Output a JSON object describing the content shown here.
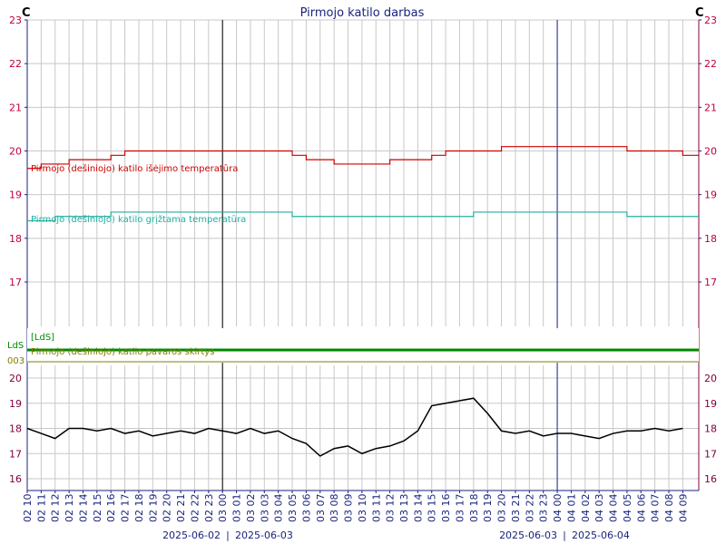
{
  "title": "Pirmojo katilo darbas",
  "unit_left": "C",
  "unit_right": "C",
  "colors": {
    "outlet": "#cc0000",
    "return": "#20b0a0",
    "state": "#008800",
    "state_aux": "#808000",
    "room": "#000000",
    "grid": "#c8c8c8",
    "axis": "#1a237e",
    "tick_top": "#c0003c",
    "tick_bottom": "#800040"
  },
  "x_tick_labels": [
    "02 10",
    "02 11",
    "02 12",
    "02 13",
    "02 14",
    "02 15",
    "02 16",
    "02 17",
    "02 18",
    "02 19",
    "02 20",
    "02 21",
    "02 22",
    "02 23",
    "03 00",
    "03 01",
    "03 02",
    "03 03",
    "03 04",
    "03 05",
    "03 06",
    "03 07",
    "03 08",
    "03 09",
    "03 10",
    "03 11",
    "03 12",
    "03 13",
    "03 14",
    "03 15",
    "03 16",
    "03 17",
    "03 18",
    "03 19",
    "03 20",
    "03 21",
    "03 22",
    "03 23",
    "04 00",
    "04 01",
    "04 02",
    "04 03",
    "04 04",
    "04 05",
    "04 06",
    "04 07",
    "04 08",
    "04 09"
  ],
  "date_labels": [
    {
      "left": "2025-06-02",
      "right": "2025-06-03"
    },
    {
      "left": "2025-06-03",
      "right": "2025-06-04"
    }
  ],
  "state_panel": {
    "tag_box": "[LdS]",
    "left_label_top": "LdS",
    "left_label_bottom": "003"
  },
  "chart_data": [
    {
      "type": "line",
      "title": "Pirmojo katilo darbas",
      "x_unit": "hour",
      "ylim": [
        16,
        23
      ],
      "yticks": [
        17,
        18,
        19,
        20,
        21,
        22,
        23
      ],
      "grid": true,
      "series": [
        {
          "name": "Pirmojo (dešiniojo) katilo išėjimo temperatūra",
          "color": "#cc0000",
          "points": [
            [
              "2025-06-02 10:00",
              19.6
            ],
            [
              "2025-06-02 11:00",
              19.7
            ],
            [
              "2025-06-02 12:00",
              19.7
            ],
            [
              "2025-06-02 13:00",
              19.8
            ],
            [
              "2025-06-02 14:00",
              19.8
            ],
            [
              "2025-06-02 15:00",
              19.8
            ],
            [
              "2025-06-02 16:00",
              19.9
            ],
            [
              "2025-06-02 17:00",
              20.0
            ],
            [
              "2025-06-02 18:00",
              20.0
            ],
            [
              "2025-06-02 19:00",
              20.0
            ],
            [
              "2025-06-02 20:00",
              20.0
            ],
            [
              "2025-06-02 21:00",
              20.0
            ],
            [
              "2025-06-02 22:00",
              20.0
            ],
            [
              "2025-06-02 23:00",
              20.0
            ],
            [
              "2025-06-03 00:00",
              20.0
            ],
            [
              "2025-06-03 01:00",
              20.0
            ],
            [
              "2025-06-03 02:00",
              20.0
            ],
            [
              "2025-06-03 03:00",
              20.0
            ],
            [
              "2025-06-03 04:00",
              20.0
            ],
            [
              "2025-06-03 05:00",
              19.9
            ],
            [
              "2025-06-03 06:00",
              19.8
            ],
            [
              "2025-06-03 07:00",
              19.8
            ],
            [
              "2025-06-03 08:00",
              19.7
            ],
            [
              "2025-06-03 09:00",
              19.7
            ],
            [
              "2025-06-03 10:00",
              19.7
            ],
            [
              "2025-06-03 11:00",
              19.7
            ],
            [
              "2025-06-03 12:00",
              19.8
            ],
            [
              "2025-06-03 13:00",
              19.8
            ],
            [
              "2025-06-03 14:00",
              19.8
            ],
            [
              "2025-06-03 15:00",
              19.9
            ],
            [
              "2025-06-03 16:00",
              20.0
            ],
            [
              "2025-06-03 17:00",
              20.0
            ],
            [
              "2025-06-03 18:00",
              20.0
            ],
            [
              "2025-06-03 19:00",
              20.0
            ],
            [
              "2025-06-03 20:00",
              20.1
            ],
            [
              "2025-06-03 21:00",
              20.1
            ],
            [
              "2025-06-03 22:00",
              20.1
            ],
            [
              "2025-06-03 23:00",
              20.1
            ],
            [
              "2025-06-04 00:00",
              20.1
            ],
            [
              "2025-06-04 01:00",
              20.1
            ],
            [
              "2025-06-04 02:00",
              20.1
            ],
            [
              "2025-06-04 03:00",
              20.1
            ],
            [
              "2025-06-04 04:00",
              20.1
            ],
            [
              "2025-06-04 05:00",
              20.0
            ],
            [
              "2025-06-04 06:00",
              20.0
            ],
            [
              "2025-06-04 07:00",
              20.0
            ],
            [
              "2025-06-04 08:00",
              20.0
            ],
            [
              "2025-06-04 09:00",
              19.9
            ]
          ]
        },
        {
          "name": "Pirmojo (dešiniojo) katilo grįžtama temperatūra",
          "color": "#20b0a0",
          "points": [
            [
              "2025-06-02 10:00",
              18.4
            ],
            [
              "2025-06-02 11:00",
              18.4
            ],
            [
              "2025-06-02 12:00",
              18.5
            ],
            [
              "2025-06-02 13:00",
              18.5
            ],
            [
              "2025-06-02 14:00",
              18.5
            ],
            [
              "2025-06-02 15:00",
              18.5
            ],
            [
              "2025-06-02 16:00",
              18.6
            ],
            [
              "2025-06-02 17:00",
              18.6
            ],
            [
              "2025-06-02 18:00",
              18.6
            ],
            [
              "2025-06-02 19:00",
              18.6
            ],
            [
              "2025-06-02 20:00",
              18.6
            ],
            [
              "2025-06-02 21:00",
              18.6
            ],
            [
              "2025-06-02 22:00",
              18.6
            ],
            [
              "2025-06-02 23:00",
              18.6
            ],
            [
              "2025-06-03 00:00",
              18.6
            ],
            [
              "2025-06-03 01:00",
              18.6
            ],
            [
              "2025-06-03 02:00",
              18.6
            ],
            [
              "2025-06-03 03:00",
              18.6
            ],
            [
              "2025-06-03 04:00",
              18.6
            ],
            [
              "2025-06-03 05:00",
              18.5
            ],
            [
              "2025-06-03 06:00",
              18.5
            ],
            [
              "2025-06-03 07:00",
              18.5
            ],
            [
              "2025-06-03 08:00",
              18.5
            ],
            [
              "2025-06-03 09:00",
              18.5
            ],
            [
              "2025-06-03 10:00",
              18.5
            ],
            [
              "2025-06-03 11:00",
              18.5
            ],
            [
              "2025-06-03 12:00",
              18.5
            ],
            [
              "2025-06-03 13:00",
              18.5
            ],
            [
              "2025-06-03 14:00",
              18.5
            ],
            [
              "2025-06-03 15:00",
              18.5
            ],
            [
              "2025-06-03 16:00",
              18.5
            ],
            [
              "2025-06-03 17:00",
              18.5
            ],
            [
              "2025-06-03 18:00",
              18.6
            ],
            [
              "2025-06-03 19:00",
              18.6
            ],
            [
              "2025-06-03 20:00",
              18.6
            ],
            [
              "2025-06-03 21:00",
              18.6
            ],
            [
              "2025-06-03 22:00",
              18.6
            ],
            [
              "2025-06-03 23:00",
              18.6
            ],
            [
              "2025-06-04 00:00",
              18.6
            ],
            [
              "2025-06-04 01:00",
              18.6
            ],
            [
              "2025-06-04 02:00",
              18.6
            ],
            [
              "2025-06-04 03:00",
              18.6
            ],
            [
              "2025-06-04 04:00",
              18.6
            ],
            [
              "2025-06-04 05:00",
              18.5
            ],
            [
              "2025-06-04 06:00",
              18.5
            ],
            [
              "2025-06-04 07:00",
              18.5
            ],
            [
              "2025-06-04 08:00",
              18.5
            ],
            [
              "2025-06-04 09:00",
              18.5
            ]
          ]
        }
      ]
    },
    {
      "type": "line",
      "title": "",
      "series": [
        {
          "name": "Pirmojo (dešiniojo) katilo pavaros skirtys",
          "color": "#008800",
          "points": [
            [
              "2025-06-02 10:00",
              1
            ],
            [
              "2025-06-04 09:00",
              1
            ]
          ]
        }
      ]
    },
    {
      "type": "line",
      "title": "",
      "ylim": [
        16,
        20
      ],
      "yticks": [
        16,
        17,
        18,
        19,
        20
      ],
      "grid": true,
      "series": [
        {
          "name": "",
          "color": "#000000",
          "points": [
            [
              "2025-06-02 10:00",
              18.0
            ],
            [
              "2025-06-02 11:00",
              17.8
            ],
            [
              "2025-06-02 12:00",
              17.6
            ],
            [
              "2025-06-02 13:00",
              18.0
            ],
            [
              "2025-06-02 14:00",
              18.0
            ],
            [
              "2025-06-02 15:00",
              17.9
            ],
            [
              "2025-06-02 16:00",
              18.0
            ],
            [
              "2025-06-02 17:00",
              17.8
            ],
            [
              "2025-06-02 18:00",
              17.9
            ],
            [
              "2025-06-02 19:00",
              17.7
            ],
            [
              "2025-06-02 20:00",
              17.8
            ],
            [
              "2025-06-02 21:00",
              17.9
            ],
            [
              "2025-06-02 22:00",
              17.8
            ],
            [
              "2025-06-02 23:00",
              18.0
            ],
            [
              "2025-06-03 00:00",
              17.9
            ],
            [
              "2025-06-03 01:00",
              17.8
            ],
            [
              "2025-06-03 02:00",
              18.0
            ],
            [
              "2025-06-03 03:00",
              17.8
            ],
            [
              "2025-06-03 04:00",
              17.9
            ],
            [
              "2025-06-03 05:00",
              17.6
            ],
            [
              "2025-06-03 06:00",
              17.4
            ],
            [
              "2025-06-03 07:00",
              16.9
            ],
            [
              "2025-06-03 08:00",
              17.2
            ],
            [
              "2025-06-03 09:00",
              17.3
            ],
            [
              "2025-06-03 10:00",
              17.0
            ],
            [
              "2025-06-03 11:00",
              17.2
            ],
            [
              "2025-06-03 12:00",
              17.3
            ],
            [
              "2025-06-03 13:00",
              17.5
            ],
            [
              "2025-06-03 14:00",
              17.9
            ],
            [
              "2025-06-03 15:00",
              18.9
            ],
            [
              "2025-06-03 16:00",
              19.0
            ],
            [
              "2025-06-03 17:00",
              19.1
            ],
            [
              "2025-06-03 18:00",
              19.2
            ],
            [
              "2025-06-03 19:00",
              18.6
            ],
            [
              "2025-06-03 20:00",
              17.9
            ],
            [
              "2025-06-03 21:00",
              17.8
            ],
            [
              "2025-06-03 22:00",
              17.9
            ],
            [
              "2025-06-03 23:00",
              17.7
            ],
            [
              "2025-06-04 00:00",
              17.8
            ],
            [
              "2025-06-04 01:00",
              17.8
            ],
            [
              "2025-06-04 02:00",
              17.7
            ],
            [
              "2025-06-04 03:00",
              17.6
            ],
            [
              "2025-06-04 04:00",
              17.8
            ],
            [
              "2025-06-04 05:00",
              17.9
            ],
            [
              "2025-06-04 06:00",
              17.9
            ],
            [
              "2025-06-04 07:00",
              18.0
            ],
            [
              "2025-06-04 08:00",
              17.9
            ],
            [
              "2025-06-04 09:00",
              18.0
            ]
          ]
        }
      ]
    }
  ]
}
